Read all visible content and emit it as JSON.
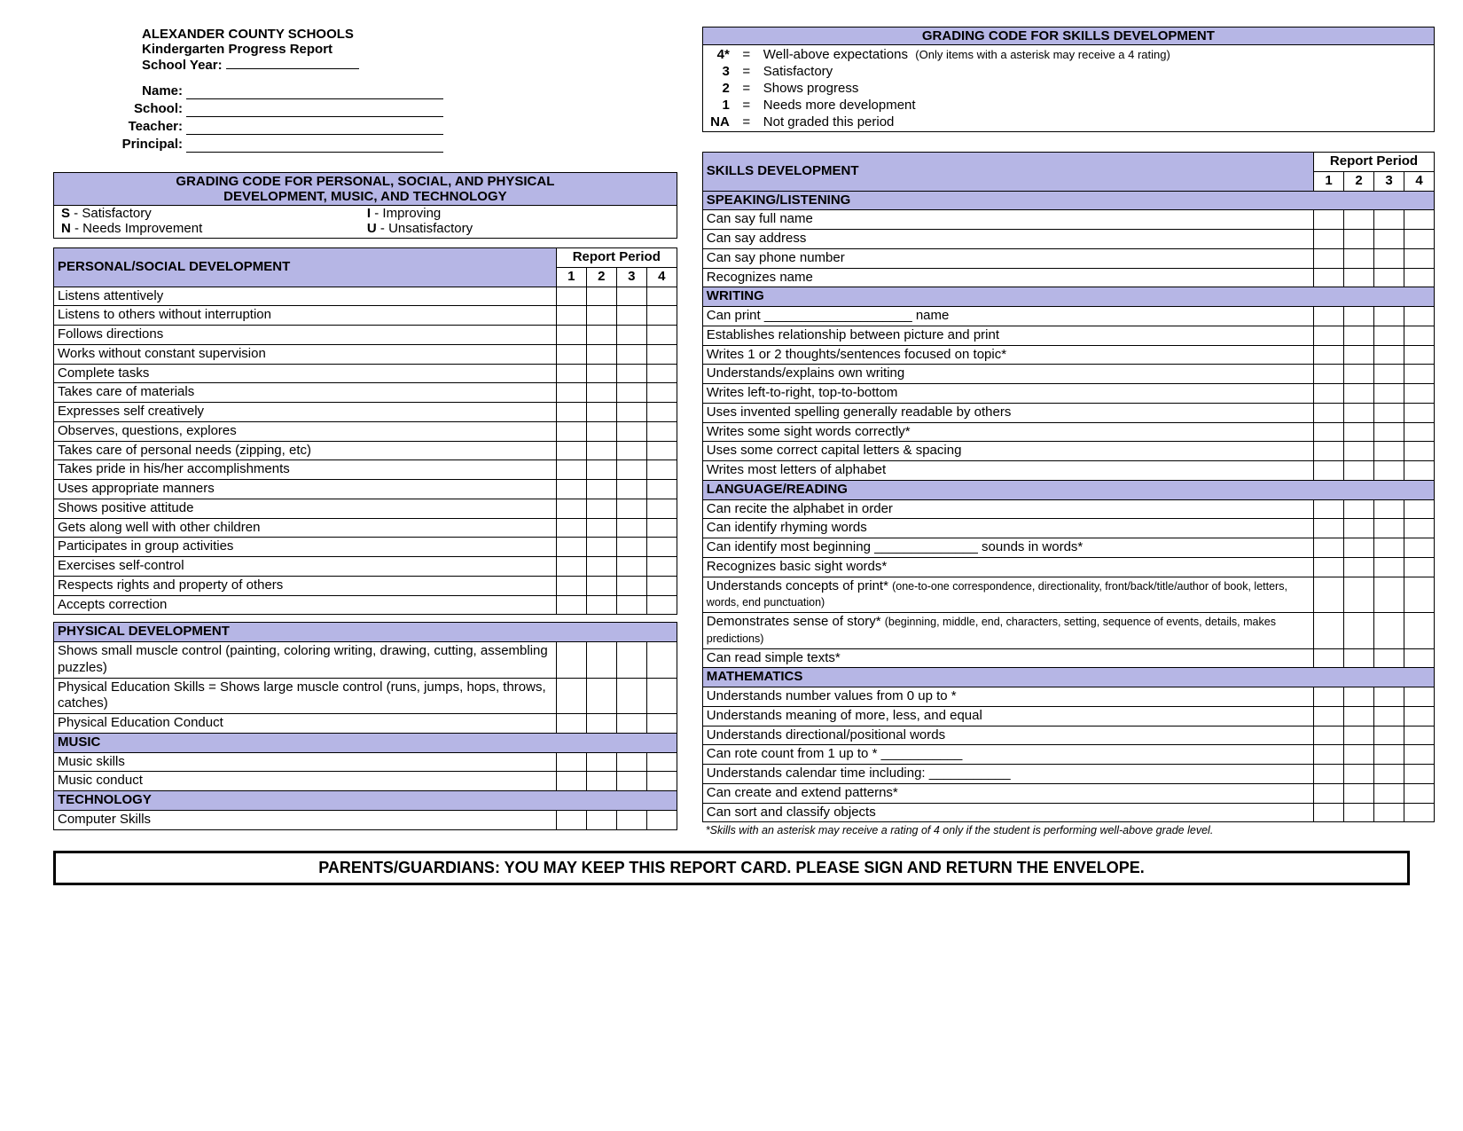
{
  "colors": {
    "band": "#b6b6e5",
    "border": "#000000",
    "bg": "#ffffff",
    "text": "#000000"
  },
  "header": {
    "district": "ALEXANDER COUNTY SCHOOLS",
    "title": "Kindergarten Progress Report",
    "schoolYearLabel": "School Year:",
    "fields": {
      "name": "Name:",
      "school": "School:",
      "teacher": "Teacher:",
      "principal": "Principal:"
    }
  },
  "gradingSkillCode": {
    "title": "GRADING CODE FOR SKILLS DEVELOPMENT",
    "rows": [
      {
        "k": "4*",
        "v": "Well-above expectations",
        "note": "(Only items with a asterisk may receive a 4 rating)"
      },
      {
        "k": "3",
        "v": "Satisfactory"
      },
      {
        "k": "2",
        "v": "Shows progress"
      },
      {
        "k": "1",
        "v": "Needs more development"
      },
      {
        "k": "NA",
        "v": "Not graded this period"
      }
    ]
  },
  "gradingPSCode": {
    "title1": "GRADING CODE FOR PERSONAL, SOCIAL, AND PHYSICAL",
    "title2": "DEVELOPMENT, MUSIC, AND TECHNOLOGY",
    "legend": {
      "s": "S - Satisfactory",
      "i": "I - Improving",
      "n": "N - Needs Improvement",
      "u": "U - Unsatisfactory"
    }
  },
  "reportPeriodLabel": "Report Period",
  "periods": [
    "1",
    "2",
    "3",
    "4"
  ],
  "psDev": {
    "title": "PERSONAL/SOCIAL DEVELOPMENT",
    "items": [
      "Listens attentively",
      "Listens to others without interruption",
      "Follows directions",
      "Works without constant supervision",
      "Complete tasks",
      "Takes care of materials",
      "Expresses self creatively",
      "Observes, questions, explores",
      "Takes care of personal needs (zipping, etc)",
      "Takes pride in his/her accomplishments",
      "Uses appropriate manners",
      "Shows positive attitude",
      "Gets along well with other children",
      "Participates in group activities",
      "Exercises self-control",
      "Respects rights and property of others",
      "Accepts correction"
    ]
  },
  "physDev": {
    "title": "PHYSICAL DEVELOPMENT",
    "items": [
      "Shows small muscle control (painting, coloring writing, drawing, cutting, assembling puzzles)",
      "Physical Education Skills = Shows large muscle control (runs, jumps, hops, throws, catches)",
      "Physical Education Conduct"
    ],
    "music": {
      "title": "MUSIC",
      "items": [
        "Music skills",
        "Music conduct"
      ]
    },
    "tech": {
      "title": "TECHNOLOGY",
      "items": [
        "Computer Skills"
      ]
    }
  },
  "skillsDev": {
    "title": "SKILLS DEVELOPMENT",
    "sections": [
      {
        "title": "SPEAKING/LISTENING",
        "items": [
          "Can say full name",
          "Can say address",
          "Can say phone number",
          "Recognizes name"
        ]
      },
      {
        "title": "WRITING",
        "items": [
          "Can print ____________________ name",
          "Establishes relationship between picture and print",
          "Writes 1 or 2 thoughts/sentences focused on topic*",
          "Understands/explains own writing",
          "Writes left-to-right, top-to-bottom",
          "Uses invented spelling generally readable by others",
          "Writes some sight words correctly*",
          "Uses some correct capital letters & spacing",
          "Writes most letters of alphabet"
        ]
      },
      {
        "title": "LANGUAGE/READING",
        "items": [
          "Can recite the alphabet in order",
          "Can identify rhyming words",
          "Can identify most beginning ______________ sounds in words*",
          "Recognizes basic sight words*",
          "Understands concepts of print*    <span class=\"small\">(one-to-one correspondence, directionality, front/back/title/author of book, letters, words, end punctuation)</span>",
          "Demonstrates sense of story*    <span class=\"small\">(beginning, middle, end, characters, setting, sequence of events, details, makes predictions)</span>",
          "Can read simple texts*"
        ]
      },
      {
        "title": "MATHEMATICS",
        "items": [
          "Understands number values from 0 up to *",
          "Understands meaning of more, less, and equal",
          "Understands directional/positional words",
          "Can rote count from 1 up to * ___________",
          "Understands calendar time including: ___________",
          "Can create and extend patterns*",
          "Can sort and classify objects"
        ]
      }
    ],
    "footnote": "*Skills with an asterisk may receive a rating of 4 only if the student is performing well-above grade level."
  },
  "footer": "PARENTS/GUARDIANS:  YOU MAY KEEP THIS REPORT CARD.  PLEASE SIGN AND RETURN THE ENVELOPE."
}
